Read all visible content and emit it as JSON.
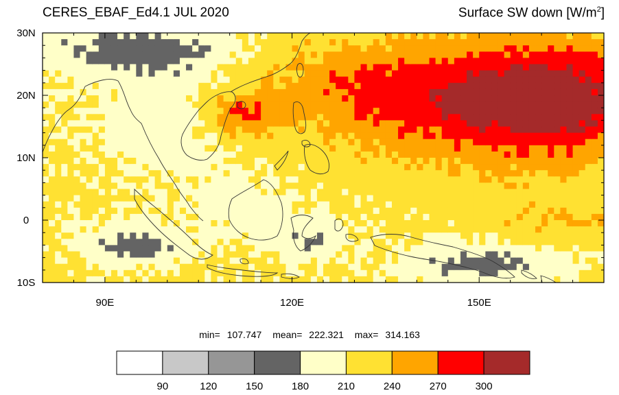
{
  "title": {
    "dataset": "CERES_EBAF_Ed4.1 JUL 2020",
    "variable": "Surface SW down",
    "units_prefix": "[W/m",
    "units_exp": "2",
    "units_suffix": "]"
  },
  "axes": {
    "lat_labels": [
      "30N",
      "20N",
      "10N",
      "0",
      "10S"
    ],
    "lat_values": [
      30,
      20,
      10,
      0,
      -10
    ],
    "lon_labels": [
      "90E",
      "120E",
      "150E"
    ],
    "lon_values": [
      90,
      120,
      150
    ],
    "lon_range": [
      80,
      170
    ],
    "lat_range": [
      -10,
      30
    ]
  },
  "stats": {
    "min_label": "min=",
    "min": "107.747",
    "mean_label": "mean=",
    "mean": "222.321",
    "max_label": "max=",
    "max": "314.163"
  },
  "colorbar": {
    "levels": [
      "90",
      "120",
      "150",
      "180",
      "210",
      "240",
      "270",
      "300"
    ],
    "colors": [
      "#ffffff",
      "#c8c8c8",
      "#969696",
      "#646464",
      "#ffffc8",
      "#ffe132",
      "#ffa500",
      "#ff0000",
      "#a52a2a"
    ]
  },
  "chart_data": {
    "type": "heatmap",
    "title": "CERES_EBAF_Ed4.1 JUL 2020",
    "variable": "Surface SW down [W/m2]",
    "x_range": [
      80,
      170
    ],
    "y_range": [
      -10,
      30
    ],
    "stats": {
      "min": 107.747,
      "mean": 222.321,
      "max": 314.163
    },
    "contour_levels": [
      90,
      120,
      150,
      180,
      210,
      240,
      270,
      300
    ]
  }
}
